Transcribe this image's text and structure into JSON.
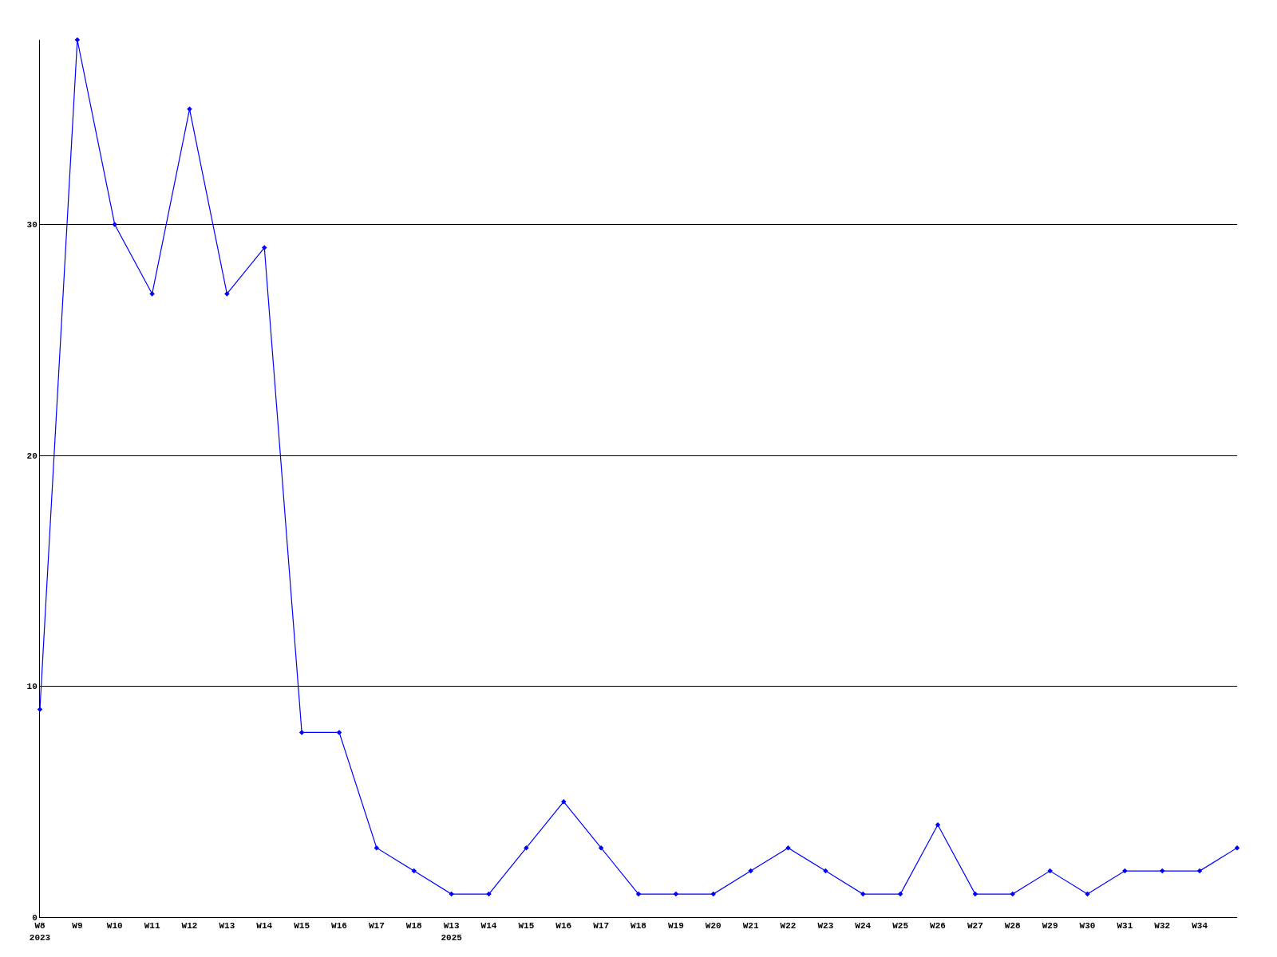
{
  "chart_data": {
    "type": "line",
    "categories": [
      "W8\n2023",
      "W9",
      "W10",
      "W11",
      "W12",
      "W13",
      "W14",
      "W15",
      "W16",
      "W17",
      "W18",
      "W13\n2025",
      "W14",
      "W15",
      "W16",
      "W17",
      "W18",
      "W19",
      "W20",
      "W21",
      "W22",
      "W23",
      "W24",
      "W25",
      "W26",
      "W27",
      "W28",
      "W29",
      "W30",
      "W31",
      "W32",
      "W34",
      null
    ],
    "series": [
      {
        "color": "#0000ff",
        "values": [
          9,
          38,
          30,
          27,
          35,
          27,
          29,
          8,
          8,
          3,
          2,
          1,
          1,
          3,
          5,
          3,
          1,
          1,
          1,
          2,
          3,
          2,
          1,
          1,
          4,
          1,
          1,
          2,
          1,
          2,
          2,
          2,
          3
        ]
      }
    ],
    "ylim": [
      0,
      38
    ],
    "yticks": [
      0,
      10,
      20,
      30
    ],
    "grid": "y",
    "legend": false,
    "marker": "diamond",
    "line_style": "solid"
  }
}
